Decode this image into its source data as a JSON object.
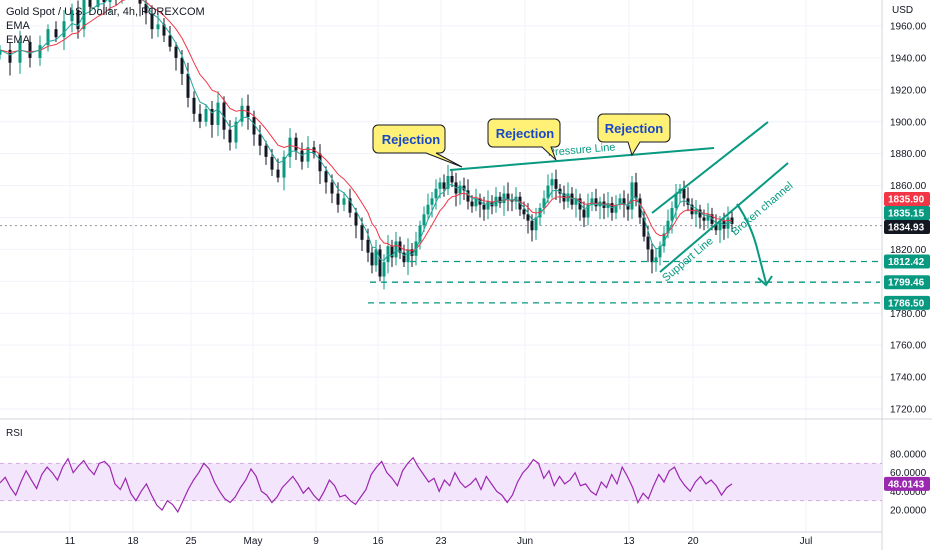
{
  "header": {
    "symbol": "Gold Spot / U.S. Dollar, 4h, FOREXCOM",
    "indicator1": "EMA",
    "indicator2": "EMA"
  },
  "currency": "USD",
  "rsi_label": "RSI",
  "colors": {
    "up": "#089981",
    "down": "#131722",
    "ema_fast": "#26a69a",
    "ema_slow": "#f23645",
    "rsi_line": "#9c27b0",
    "rsi_band": "#f3e5fb",
    "annotation": "#089981",
    "callout_fill": "#fff176",
    "callout_text": "#1848c8",
    "price_label_red": "#f23645",
    "price_label_green": "#089981",
    "price_label_dark": "#131722"
  },
  "annotations": {
    "callouts": [
      {
        "text": "Rejection"
      },
      {
        "text": "Rejection"
      },
      {
        "text": "Rejection"
      }
    ],
    "pressure_line": "Pressure Line",
    "support_line": "Support Line",
    "broken_channel": "Broken channel"
  },
  "chart_data": [
    {
      "type": "candlestick",
      "title": "Gold Spot / U.S. Dollar, 4h, FOREXCOM",
      "ylabel": "USD",
      "ylim": [
        1710,
        1978
      ],
      "y_ticks": [
        "1960.00",
        "1940.00",
        "1920.00",
        "1900.00",
        "1880.00",
        "1860.00",
        "1840.00",
        "1820.00",
        "1800.00",
        "1780.00",
        "1760.00",
        "1740.00",
        "1720.00"
      ],
      "x_ticks": [
        "11",
        "18",
        "25",
        "May",
        "9",
        "16",
        "23",
        "Jun",
        "13",
        "20",
        "Jul"
      ],
      "price_labels": [
        {
          "value": "1835.90",
          "style": "red"
        },
        {
          "value": "1835.15",
          "style": "green"
        },
        {
          "value": "1834.93",
          "style": "dark"
        },
        {
          "value": "1812.42",
          "style": "green"
        },
        {
          "value": "1799.46",
          "style": "green"
        },
        {
          "value": "1786.50",
          "style": "green"
        }
      ],
      "series": [
        {
          "name": "EMA",
          "kind": "ema_fast"
        },
        {
          "name": "EMA",
          "kind": "ema_slow"
        }
      ],
      "close_path": [
        [
          0,
          1945
        ],
        [
          10,
          1937
        ],
        [
          20,
          1950
        ],
        [
          30,
          1940
        ],
        [
          40,
          1948
        ],
        [
          48,
          1958
        ],
        [
          56,
          1953
        ],
        [
          64,
          1963
        ],
        [
          72,
          1970
        ],
        [
          78,
          1958
        ],
        [
          84,
          1978
        ],
        [
          90,
          1972
        ],
        [
          98,
          1980
        ],
        [
          104,
          1975
        ],
        [
          110,
          1985
        ],
        [
          116,
          1979
        ],
        [
          122,
          1988
        ],
        [
          128,
          1982
        ],
        [
          134,
          1980
        ],
        [
          140,
          1974
        ],
        [
          146,
          1968
        ],
        [
          152,
          1958
        ],
        [
          158,
          1961
        ],
        [
          164,
          1954
        ],
        [
          170,
          1947
        ],
        [
          176,
          1940
        ],
        [
          182,
          1930
        ],
        [
          188,
          1915
        ],
        [
          194,
          1905
        ],
        [
          200,
          1900
        ],
        [
          206,
          1908
        ],
        [
          212,
          1898
        ],
        [
          218,
          1912
        ],
        [
          224,
          1895
        ],
        [
          230,
          1887
        ],
        [
          236,
          1900
        ],
        [
          242,
          1910
        ],
        [
          248,
          1903
        ],
        [
          254,
          1892
        ],
        [
          260,
          1885
        ],
        [
          266,
          1878
        ],
        [
          272,
          1870
        ],
        [
          278,
          1865
        ],
        [
          284,
          1878
        ],
        [
          290,
          1890
        ],
        [
          296,
          1882
        ],
        [
          302,
          1875
        ],
        [
          308,
          1884
        ],
        [
          314,
          1880
        ],
        [
          320,
          1869
        ],
        [
          326,
          1862
        ],
        [
          332,
          1855
        ],
        [
          338,
          1848
        ],
        [
          344,
          1852
        ],
        [
          350,
          1843
        ],
        [
          356,
          1835
        ],
        [
          362,
          1826
        ],
        [
          368,
          1818
        ],
        [
          372,
          1810
        ],
        [
          376,
          1820
        ],
        [
          380,
          1803
        ],
        [
          384,
          1812
        ],
        [
          388,
          1822
        ],
        [
          392,
          1815
        ],
        [
          396,
          1825
        ],
        [
          400,
          1818
        ],
        [
          404,
          1812
        ],
        [
          408,
          1820
        ],
        [
          412,
          1816
        ],
        [
          416,
          1825
        ],
        [
          420,
          1835
        ],
        [
          424,
          1842
        ],
        [
          428,
          1848
        ],
        [
          432,
          1852
        ],
        [
          436,
          1858
        ],
        [
          440,
          1862
        ],
        [
          444,
          1858
        ],
        [
          448,
          1866
        ],
        [
          452,
          1862
        ],
        [
          456,
          1855
        ],
        [
          460,
          1860
        ],
        [
          464,
          1857
        ],
        [
          468,
          1850
        ],
        [
          472,
          1847
        ],
        [
          476,
          1852
        ],
        [
          480,
          1848
        ],
        [
          484,
          1845
        ],
        [
          488,
          1850
        ],
        [
          492,
          1847
        ],
        [
          496,
          1853
        ],
        [
          500,
          1849
        ],
        [
          504,
          1855
        ],
        [
          508,
          1851
        ],
        [
          512,
          1850
        ],
        [
          516,
          1853
        ],
        [
          520,
          1845
        ],
        [
          524,
          1842
        ],
        [
          528,
          1838
        ],
        [
          532,
          1832
        ],
        [
          536,
          1840
        ],
        [
          540,
          1846
        ],
        [
          544,
          1852
        ],
        [
          548,
          1860
        ],
        [
          552,
          1864
        ],
        [
          556,
          1858
        ],
        [
          560,
          1855
        ],
        [
          564,
          1850
        ],
        [
          568,
          1855
        ],
        [
          572,
          1848
        ],
        [
          576,
          1852
        ],
        [
          580,
          1845
        ],
        [
          584,
          1840
        ],
        [
          588,
          1848
        ],
        [
          592,
          1852
        ],
        [
          596,
          1847
        ],
        [
          600,
          1850
        ],
        [
          604,
          1846
        ],
        [
          608,
          1849
        ],
        [
          612,
          1843
        ],
        [
          616,
          1848
        ],
        [
          620,
          1852
        ],
        [
          624,
          1848
        ],
        [
          628,
          1845
        ],
        [
          632,
          1862
        ],
        [
          636,
          1852
        ],
        [
          640,
          1840
        ],
        [
          644,
          1828
        ],
        [
          648,
          1820
        ],
        [
          652,
          1812
        ],
        [
          656,
          1815
        ],
        [
          660,
          1822
        ],
        [
          664,
          1830
        ],
        [
          668,
          1838
        ],
        [
          672,
          1846
        ],
        [
          676,
          1855
        ],
        [
          680,
          1858
        ],
        [
          684,
          1852
        ],
        [
          688,
          1848
        ],
        [
          692,
          1842
        ],
        [
          696,
          1845
        ],
        [
          700,
          1840
        ],
        [
          704,
          1838
        ],
        [
          708,
          1842
        ],
        [
          712,
          1836
        ],
        [
          716,
          1832
        ],
        [
          720,
          1838
        ],
        [
          724,
          1833
        ],
        [
          728,
          1840
        ],
        [
          732,
          1836
        ]
      ]
    },
    {
      "type": "line",
      "title": "RSI",
      "ylim": [
        10,
        85
      ],
      "y_ticks": [
        "80.0000",
        "60.0000",
        "40.0000",
        "20.0000"
      ],
      "current_value": "48.0143",
      "band": [
        30,
        70
      ],
      "values": [
        49,
        55,
        44,
        36,
        50,
        62,
        52,
        43,
        58,
        66,
        60,
        52,
        66,
        75,
        60,
        67,
        73,
        64,
        58,
        70,
        72,
        66,
        48,
        42,
        54,
        38,
        30,
        40,
        48,
        36,
        25,
        20,
        30,
        26,
        18,
        30,
        42,
        52,
        60,
        70,
        64,
        50,
        40,
        32,
        28,
        34,
        44,
        52,
        64,
        56,
        40,
        36,
        28,
        34,
        44,
        50,
        56,
        48,
        38,
        44,
        36,
        30,
        40,
        52,
        46,
        34,
        36,
        30,
        26,
        34,
        42,
        58,
        66,
        72,
        60,
        54,
        46,
        62,
        70,
        76,
        66,
        58,
        50,
        54,
        40,
        52,
        46,
        60,
        50,
        44,
        48,
        54,
        42,
        56,
        48,
        40,
        36,
        28,
        36,
        50,
        60,
        66,
        74,
        70,
        54,
        62,
        46,
        56,
        48,
        52,
        60,
        46,
        48,
        40,
        36,
        50,
        44,
        58,
        48,
        66,
        56,
        44,
        28,
        38,
        32,
        46,
        58,
        50,
        62,
        66,
        54,
        46,
        40,
        50,
        56,
        48,
        52,
        46,
        36,
        44,
        48
      ]
    }
  ]
}
